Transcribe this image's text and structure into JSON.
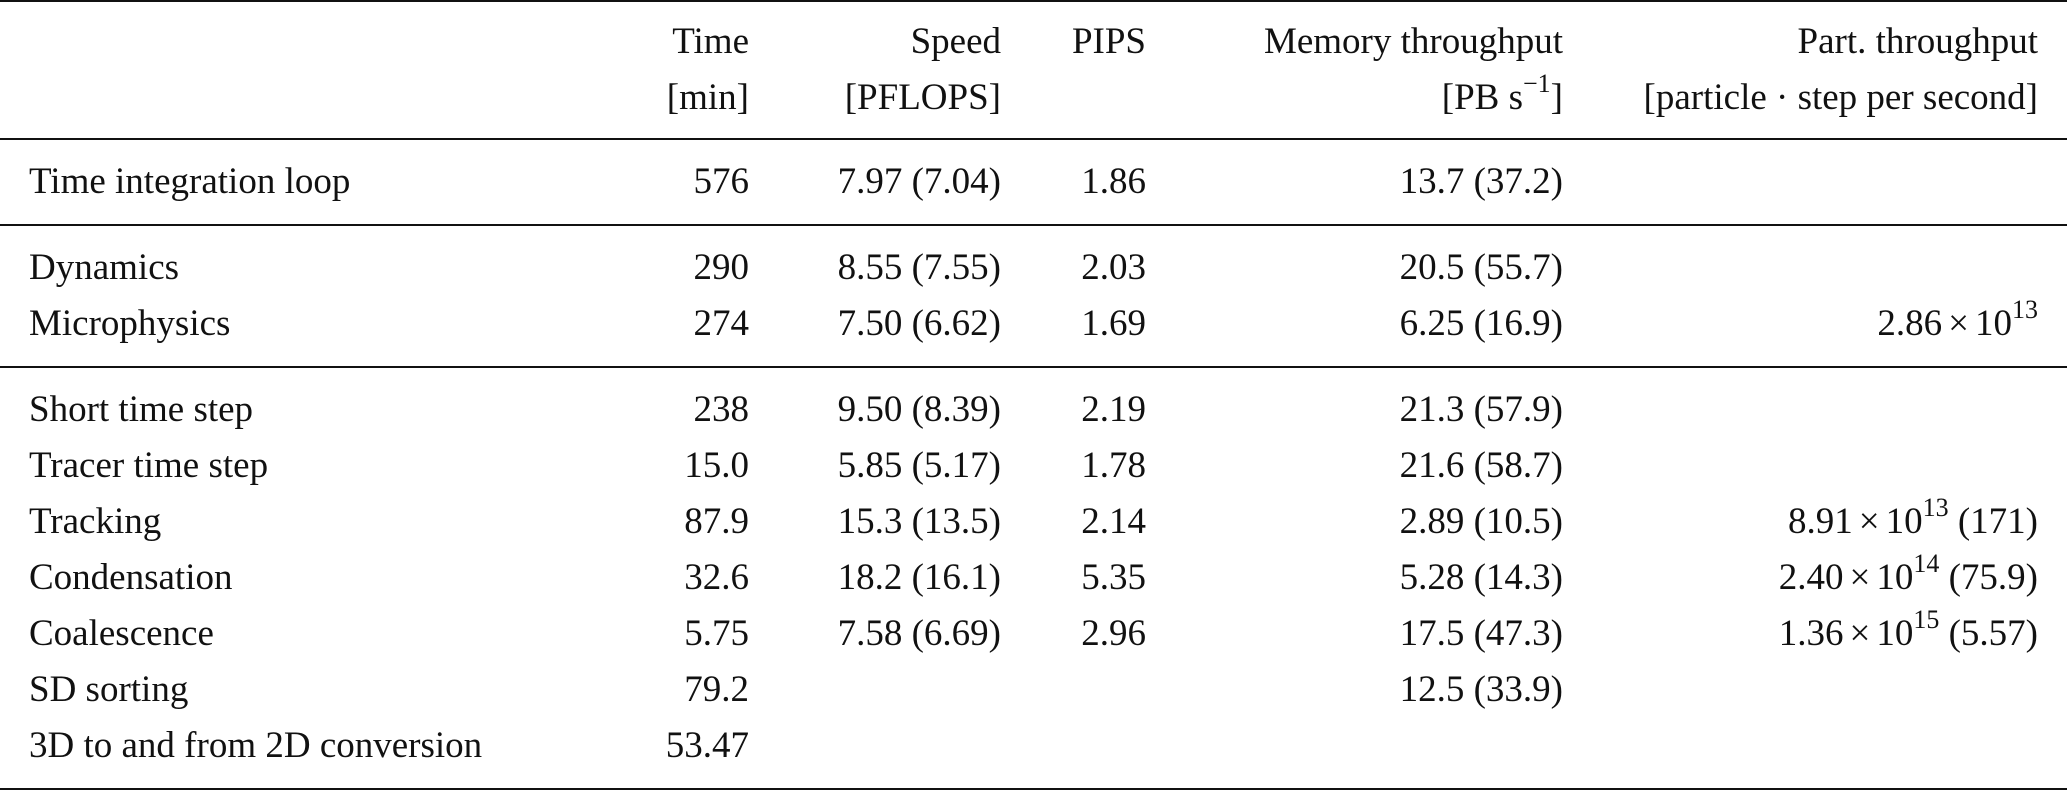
{
  "header": {
    "row1": [
      "",
      "Time",
      "Speed",
      "PIPS",
      "Memory throughput",
      "Part. throughput"
    ],
    "row2": [
      "",
      "[min]",
      "[PFLOPS]",
      "",
      "[PB s",
      "[particle · step per second]"
    ],
    "mem_unit_exp": "−1",
    "mem_unit_close": "]"
  },
  "groups": [
    {
      "rows": [
        {
          "label": "Time integration loop",
          "time": "576",
          "speed": "7.97 (7.04)",
          "pips": "1.86",
          "memory": "13.7 (37.2)",
          "part": {
            "mant": "",
            "exp": "",
            "suffix": ""
          }
        }
      ]
    },
    {
      "rows": [
        {
          "label": "Dynamics",
          "time": "290",
          "speed": "8.55 (7.55)",
          "pips": "2.03",
          "memory": "20.5 (55.7)",
          "part": {
            "mant": "",
            "exp": "",
            "suffix": ""
          }
        },
        {
          "label": "Microphysics",
          "time": "274",
          "speed": "7.50 (6.62)",
          "pips": "1.69",
          "memory": "6.25 (16.9)",
          "part": {
            "mant": "2.86",
            "exp": "13",
            "suffix": ""
          }
        }
      ]
    },
    {
      "rows": [
        {
          "label": "Short time step",
          "time": "238",
          "speed": "9.50 (8.39)",
          "pips": "2.19",
          "memory": "21.3 (57.9)",
          "part": {
            "mant": "",
            "exp": "",
            "suffix": ""
          }
        },
        {
          "label": "Tracer time step",
          "time": "15.0",
          "speed": "5.85 (5.17)",
          "pips": "1.78",
          "memory": "21.6 (58.7)",
          "part": {
            "mant": "",
            "exp": "",
            "suffix": ""
          }
        },
        {
          "label": "Tracking",
          "time": "87.9",
          "speed": "15.3 (13.5)",
          "pips": "2.14",
          "memory": "2.89 (10.5)",
          "part": {
            "mant": "8.91",
            "exp": "13",
            "suffix": " (171)"
          }
        },
        {
          "label": "Condensation",
          "time": "32.6",
          "speed": "18.2 (16.1)",
          "pips": "5.35",
          "memory": "5.28 (14.3)",
          "part": {
            "mant": "2.40",
            "exp": "14",
            "suffix": " (75.9)"
          }
        },
        {
          "label": "Coalescence",
          "time": "5.75",
          "speed": "7.58 (6.69)",
          "pips": "2.96",
          "memory": "17.5 (47.3)",
          "part": {
            "mant": "1.36",
            "exp": "15",
            "suffix": " (5.57)"
          }
        },
        {
          "label": "SD sorting",
          "time": "79.2",
          "speed": "",
          "pips": "",
          "memory": "12.5 (33.9)",
          "part": {
            "mant": "",
            "exp": "",
            "suffix": ""
          }
        },
        {
          "label": "3D to and from 2D conversion",
          "time": "53.47",
          "speed": "",
          "pips": "",
          "memory": "",
          "part": {
            "mant": "",
            "exp": "",
            "suffix": ""
          }
        }
      ]
    }
  ]
}
